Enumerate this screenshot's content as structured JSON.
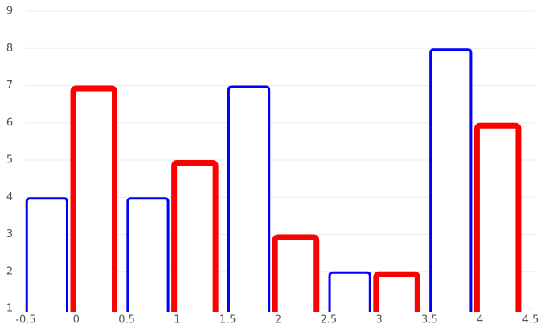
{
  "chart_data": {
    "type": "bar",
    "x": [
      0,
      1,
      2,
      3,
      4
    ],
    "series": [
      {
        "color": "#0000ff",
        "values": [
          4,
          4,
          7,
          2,
          8
        ]
      },
      {
        "color": "#ff0000",
        "values": [
          7,
          5,
          3,
          2,
          6
        ]
      }
    ],
    "xlim": [
      -0.5,
      4.5
    ],
    "xticks": [
      -0.5,
      0,
      0.5,
      1,
      1.5,
      2,
      2.5,
      3,
      3.5,
      4,
      4.5
    ],
    "ylim": [
      1,
      9
    ],
    "yticks": [
      1,
      2,
      3,
      4,
      5,
      6,
      7,
      8,
      9
    ],
    "grid": true
  }
}
